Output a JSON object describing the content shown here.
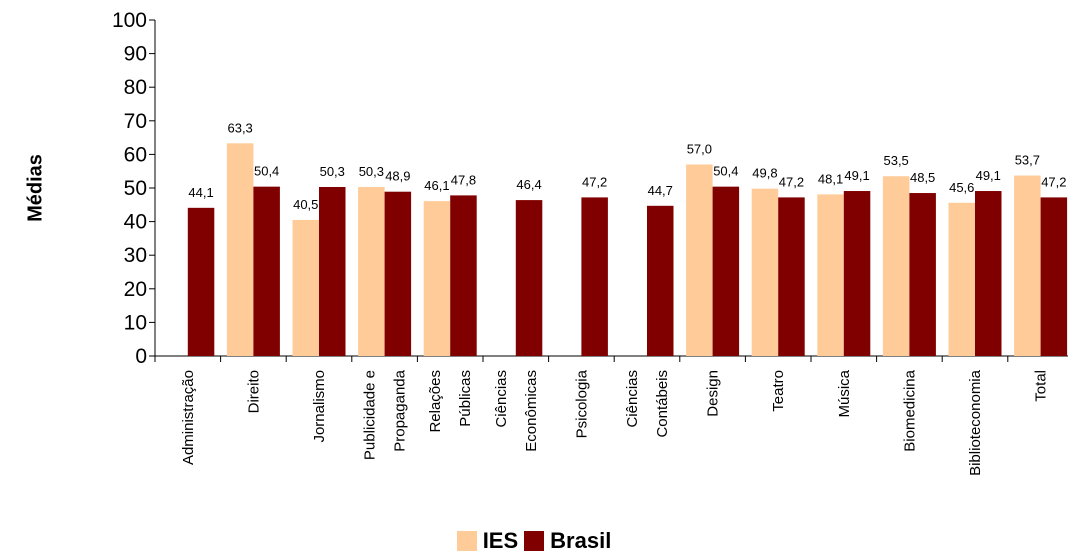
{
  "chart_data": {
    "type": "bar",
    "ylabel": "Médias",
    "ylim": [
      0,
      100
    ],
    "yticks": [
      0,
      10,
      20,
      30,
      40,
      50,
      60,
      70,
      80,
      90,
      100
    ],
    "categories": [
      [
        "Administração"
      ],
      [
        "Direito"
      ],
      [
        "Jornalismo"
      ],
      [
        "Publicidade e",
        "Propaganda"
      ],
      [
        "Relações",
        "Públicas"
      ],
      [
        "Ciências",
        "Econômicas"
      ],
      [
        "Psicologia"
      ],
      [
        "Ciências",
        "Contábeis"
      ],
      [
        "Design"
      ],
      [
        "Teatro"
      ],
      [
        "Música"
      ],
      [
        "Biomedicina"
      ],
      [
        "Biblioteconomia"
      ],
      [
        "Total"
      ]
    ],
    "series": [
      {
        "name": "IES",
        "color": "#FFCC99",
        "values": [
          null,
          63.3,
          40.5,
          50.3,
          46.1,
          null,
          null,
          null,
          57.0,
          49.8,
          48.1,
          53.5,
          45.6,
          53.7
        ],
        "labels": [
          "",
          "63,3",
          "40,5",
          "50,3",
          "46,1",
          "",
          "",
          "",
          "57,0",
          "49,8",
          "48,1",
          "53,5",
          "45,6",
          "53,7"
        ]
      },
      {
        "name": "Brasil",
        "color": "#800000",
        "values": [
          44.1,
          50.4,
          50.3,
          48.9,
          47.8,
          46.4,
          47.2,
          44.7,
          50.4,
          47.2,
          49.1,
          48.5,
          49.1,
          47.2
        ],
        "labels": [
          "44,1",
          "50,4",
          "50,3",
          "48,9",
          "47,8",
          "46,4",
          "47,2",
          "44,7",
          "50,4",
          "47,2",
          "49,1",
          "48,5",
          "49,1",
          "47,2"
        ]
      }
    ],
    "legend_position": "bottom"
  }
}
